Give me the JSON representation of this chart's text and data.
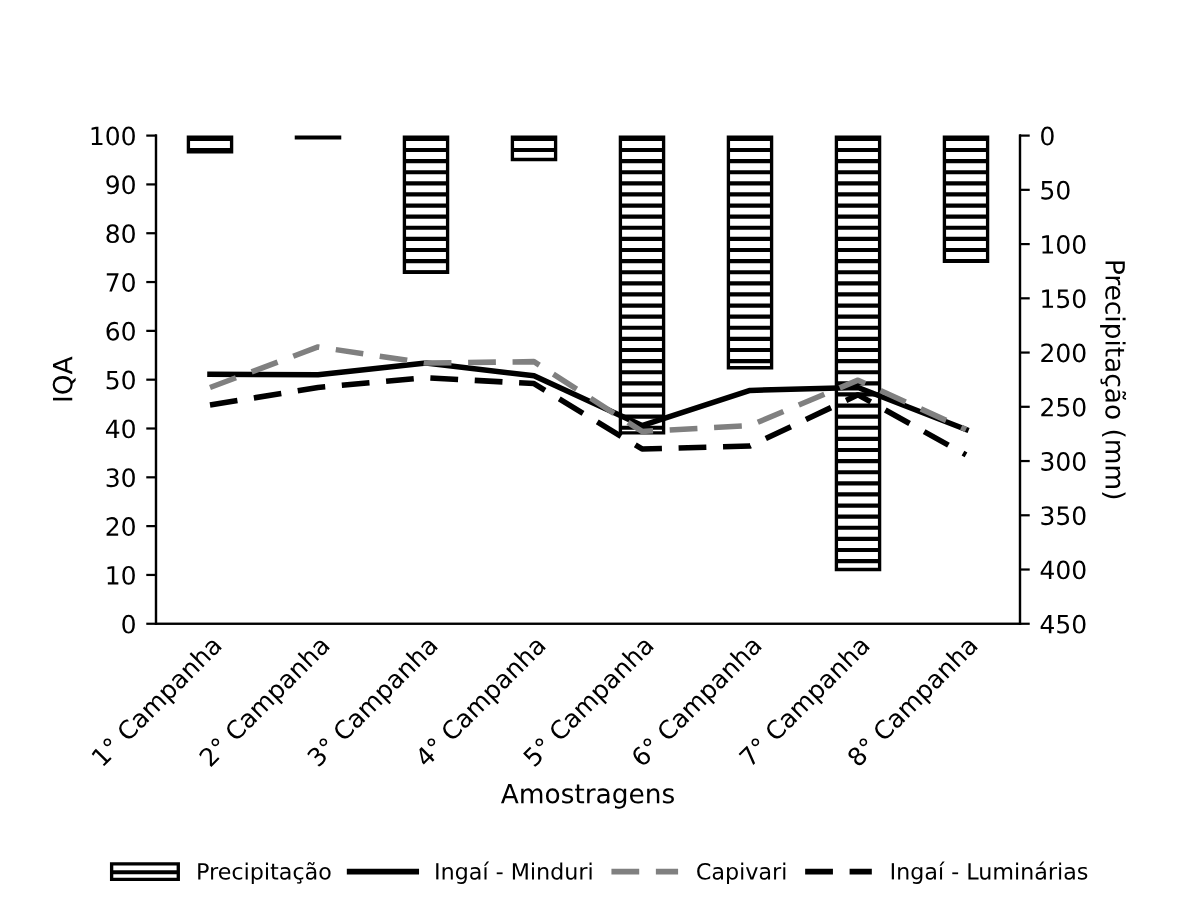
{
  "chart_data": {
    "type": "line",
    "xlabel": "Amostragens",
    "ylabel": "IQA",
    "y2label": "Precipitação (mm)",
    "categories": [
      "1° Campanha",
      "2° Campanha",
      "3° Campanha",
      "4° Campanha",
      "5° Campanha",
      "6° Campanha",
      "7° Campanha",
      "8° Campanha"
    ],
    "series": [
      {
        "name": "Precipitação",
        "type": "bar",
        "axis": "y2",
        "color": "#000000",
        "values": [
          15,
          2,
          126,
          22,
          274,
          214,
          400,
          116
        ]
      },
      {
        "name": "Ingaí - Minduri",
        "color": "#000000",
        "line_style": "solid",
        "values": [
          51.1,
          51,
          53.4,
          50.8,
          40.6,
          47.8,
          48.4,
          39.8
        ]
      },
      {
        "name": "Capivari",
        "color": "#808080",
        "line_style": "dashed",
        "values": [
          48.4,
          56.7,
          53.4,
          53.7,
          39.4,
          40.6,
          49.9,
          39.8
        ]
      },
      {
        "name": "Ingaí - Luminárias",
        "color": "#000000",
        "line_style": "dashed",
        "values": [
          44.8,
          48.4,
          50.4,
          49.2,
          35.8,
          36.4,
          46.9,
          34.6
        ]
      }
    ],
    "ylim": [
      0,
      100
    ],
    "yticks": [
      0,
      10,
      20,
      30,
      40,
      50,
      60,
      70,
      80,
      90,
      100
    ],
    "y2lim": [
      450,
      0
    ],
    "y2ticks": [
      0,
      50,
      100,
      150,
      200,
      250,
      300,
      350,
      400,
      450
    ],
    "grid": false,
    "legend": "bottom",
    "marker": "none"
  }
}
